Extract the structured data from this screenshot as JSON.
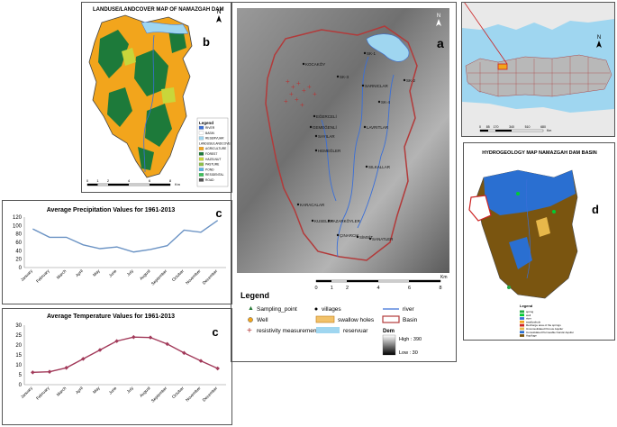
{
  "panel_b": {
    "title": "LANDUSE/LANDCOVER MAP OF NAMAZGAH DAM",
    "letter": "b",
    "north": "N",
    "legend_title": "Legend",
    "legend_items": [
      {
        "label": "RIVER",
        "color": "#3a6fd8"
      },
      {
        "label": "BASIN",
        "color": "#ffffff"
      },
      {
        "label": "RESERVUAR",
        "color": "#9fd6f0"
      },
      {
        "label": "LANDUSE/LANDCOVER",
        "color": ""
      },
      {
        "label": "AGRICULTURE",
        "color": "#f2a51c"
      },
      {
        "label": "FOREST",
        "color": "#1d7a3a"
      },
      {
        "label": "HAZELNUT",
        "color": "#c9d63a"
      },
      {
        "label": "PASTURE",
        "color": "#8fbf4a"
      },
      {
        "label": "POND",
        "color": "#5ab4e6"
      },
      {
        "label": "RESIDENTAL",
        "color": "#3cc25a"
      },
      {
        "label": "ROAD",
        "color": "#555555"
      }
    ],
    "scale_labels": [
      "0",
      "1",
      "2",
      "4",
      "6",
      "8"
    ],
    "scale_unit": "Km"
  },
  "panel_a": {
    "letter": "a",
    "north": "N",
    "villages": [
      "KOCAKÖY",
      "SK-1",
      "SK-2",
      "SK-3",
      "SK-4",
      "SARNICLAR",
      "EĞERCELİ",
      "GEMEĞENLİ",
      "SAYILAR",
      "HEMEĞLER",
      "LAVRITLAR",
      "SILKALLAR",
      "KARACALAR",
      "KUSELER",
      "PAZARKÖYLER",
      "ÇINARCIK",
      "SİMSİT",
      "SANATLER"
    ],
    "scale_labels": [
      "0",
      "1",
      "2",
      "4",
      "6",
      "8"
    ],
    "scale_unit": "Km",
    "legend_title": "Legend",
    "legend_items": [
      "Sampling_point",
      "villages",
      "river",
      "Well",
      "swallow holes",
      "Basin",
      "resistivity measurement",
      "reservuar"
    ],
    "dem_title": "Dem",
    "dem_high": "High : 390",
    "dem_low": "Low : 30"
  },
  "turkey_map": {
    "north": "N",
    "scale_labels": [
      "0",
      "85",
      "170",
      "340",
      "510",
      "680"
    ],
    "scale_unit": "Km"
  },
  "panel_d": {
    "title": "HYDROGEOLOGY MAP NAMAZGAH DAM BASIN",
    "letter": "d",
    "legend_title": "Legend",
    "legend_items": [
      {
        "label": "spring",
        "color": "#22aa44"
      },
      {
        "label": "well",
        "color": "#00cc33"
      },
      {
        "label": "river",
        "color": "#3a6fd8"
      },
      {
        "label": "swallowhole",
        "color": "#f2a51c"
      },
      {
        "label": "Recharge area of the springs",
        "color": "#cc2222"
      },
      {
        "label": "Unconsolidated Porous Aquifer",
        "color": "#e8b84a"
      },
      {
        "label": "Consolidated Permeable Karstic Aquifer",
        "color": "#2a6fd1"
      },
      {
        "label": "Aquifuge",
        "color": "#7a5510"
      }
    ]
  },
  "precip_chart": {
    "letter": "c",
    "chart_data": {
      "type": "line",
      "title": "Average Precipitation Values for 1961-2013",
      "categories": [
        "January",
        "February",
        "March",
        "April",
        "May",
        "June",
        "July",
        "August",
        "September",
        "October",
        "November",
        "December"
      ],
      "values": [
        92,
        72,
        72,
        54,
        45,
        49,
        37,
        43,
        52,
        89,
        84,
        112
      ],
      "ylim": [
        0,
        120
      ],
      "yticks": [
        0,
        20,
        40,
        60,
        80,
        100,
        120
      ],
      "color": "#6b93c4",
      "grid": false
    }
  },
  "temp_chart": {
    "letter": "c",
    "chart_data": {
      "type": "line",
      "title": "Average Temperature Values for 1961-2013",
      "categories": [
        "January",
        "February",
        "March",
        "April",
        "May",
        "June",
        "July",
        "August",
        "September",
        "October",
        "November",
        "December"
      ],
      "values": [
        6.2,
        6.5,
        8.5,
        13,
        17.5,
        22,
        24,
        23.8,
        20.5,
        16,
        12,
        8.2
      ],
      "ylim": [
        0,
        30
      ],
      "yticks": [
        0,
        5,
        10,
        15,
        20,
        25,
        30
      ],
      "color": "#a23a5a",
      "grid": false
    }
  }
}
